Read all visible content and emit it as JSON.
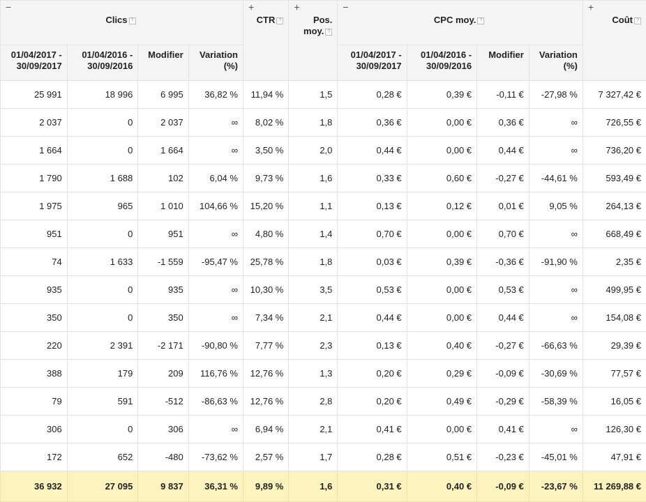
{
  "headers": {
    "clics": "Clics",
    "ctr": "CTR",
    "pos_moy": "Pos. moy.",
    "cpc_moy": "CPC moy.",
    "cout": "Coût",
    "period_current": "01/04/2017 - 30/09/2017",
    "period_previous": "01/04/2016 - 30/09/2016",
    "modifier": "Modifier",
    "variation": "Variation (%)",
    "collapse_symbol": "−",
    "expand_symbol": "+",
    "help_symbol": "?"
  },
  "rows": [
    [
      "25 991",
      "18 996",
      "6 995",
      "36,82 %",
      "11,94 %",
      "1,5",
      "0,28 €",
      "0,39 €",
      "-0,11 €",
      "-27,98 %",
      "7 327,42 €"
    ],
    [
      "2 037",
      "0",
      "2 037",
      "∞",
      "8,02 %",
      "1,8",
      "0,36 €",
      "0,00 €",
      "0,36 €",
      "∞",
      "726,55 €"
    ],
    [
      "1 664",
      "0",
      "1 664",
      "∞",
      "3,50 %",
      "2,0",
      "0,44 €",
      "0,00 €",
      "0,44 €",
      "∞",
      "736,20 €"
    ],
    [
      "1 790",
      "1 688",
      "102",
      "6,04 %",
      "9,73 %",
      "1,6",
      "0,33 €",
      "0,60 €",
      "-0,27 €",
      "-44,61 %",
      "593,49 €"
    ],
    [
      "1 975",
      "965",
      "1 010",
      "104,66 %",
      "15,20 %",
      "1,1",
      "0,13 €",
      "0,12 €",
      "0,01 €",
      "9,05 %",
      "264,13 €"
    ],
    [
      "951",
      "0",
      "951",
      "∞",
      "4,80 %",
      "1,4",
      "0,70 €",
      "0,00 €",
      "0,70 €",
      "∞",
      "668,49 €"
    ],
    [
      "74",
      "1 633",
      "-1 559",
      "-95,47 %",
      "25,78 %",
      "1,8",
      "0,03 €",
      "0,39 €",
      "-0,36 €",
      "-91,90 %",
      "2,35 €"
    ],
    [
      "935",
      "0",
      "935",
      "∞",
      "10,30 %",
      "3,5",
      "0,53 €",
      "0,00 €",
      "0,53 €",
      "∞",
      "499,95 €"
    ],
    [
      "350",
      "0",
      "350",
      "∞",
      "7,34 %",
      "2,1",
      "0,44 €",
      "0,00 €",
      "0,44 €",
      "∞",
      "154,08 €"
    ],
    [
      "220",
      "2 391",
      "-2 171",
      "-90,80 %",
      "7,77 %",
      "2,3",
      "0,13 €",
      "0,40 €",
      "-0,27 €",
      "-66,63 %",
      "29,39 €"
    ],
    [
      "388",
      "179",
      "209",
      "116,76 %",
      "12,76 %",
      "1,3",
      "0,20 €",
      "0,29 €",
      "-0,09 €",
      "-30,69 %",
      "77,57 €"
    ],
    [
      "79",
      "591",
      "-512",
      "-86,63 %",
      "12,76 %",
      "2,8",
      "0,20 €",
      "0,49 €",
      "-0,29 €",
      "-58,39 %",
      "16,05 €"
    ],
    [
      "306",
      "0",
      "306",
      "∞",
      "6,94 %",
      "2,1",
      "0,41 €",
      "0,00 €",
      "0,41 €",
      "∞",
      "126,30 €"
    ],
    [
      "172",
      "652",
      "-480",
      "-73,62 %",
      "2,57 %",
      "1,7",
      "0,28 €",
      "0,51 €",
      "-0,23 €",
      "-45,01 %",
      "47,91 €"
    ]
  ],
  "total": [
    "36 932",
    "27 095",
    "9 837",
    "36,31 %",
    "9,89 %",
    "1,6",
    "0,31 €",
    "0,40 €",
    "-0,09 €",
    "-23,67 %",
    "11 269,88 €"
  ]
}
